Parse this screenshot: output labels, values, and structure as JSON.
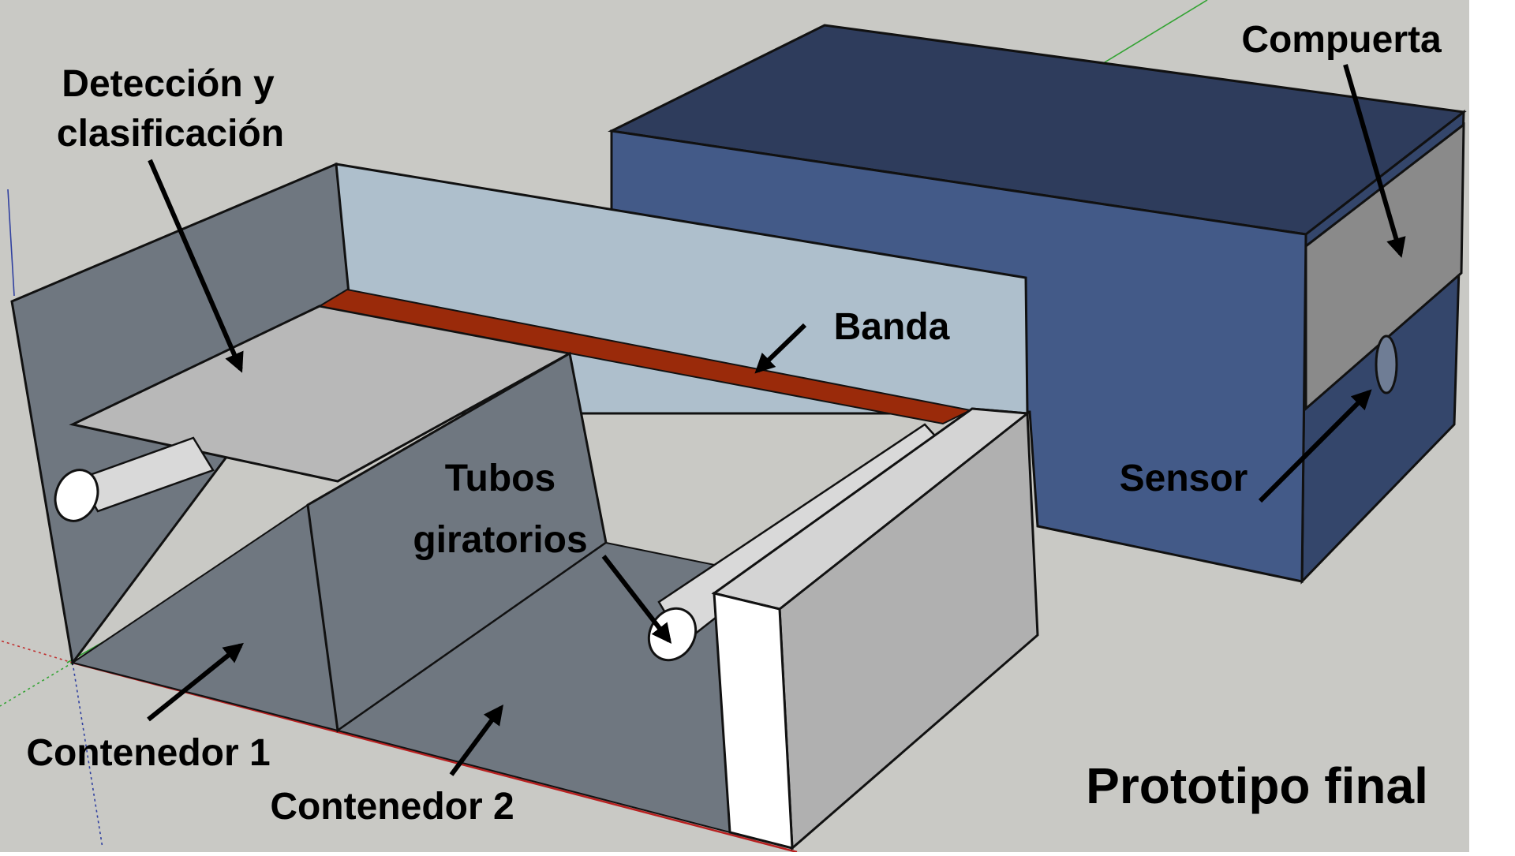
{
  "title": "Prototipo final",
  "labels": {
    "deteccion_line1": "Detección y",
    "deteccion_line2": "clasificación",
    "compuerta": "Compuerta",
    "banda": "Banda",
    "tubos_line1": "Tubos",
    "tubos_line2": "giratorios",
    "sensor": "Sensor",
    "contenedor1": "Contenedor 1",
    "contenedor2": "Contenedor 2"
  },
  "colors": {
    "background": "#c9c9c5",
    "box_front": "#435a88",
    "box_top": "#2e3c5c",
    "box_side": "#34466b",
    "gate": "#8a8a8a",
    "belt": "#9a2a0a",
    "wall_light": "#aebfcc",
    "wall_dark": "#6f7780",
    "tray": "#b8b8b8",
    "panel_white": "#ffffff"
  }
}
